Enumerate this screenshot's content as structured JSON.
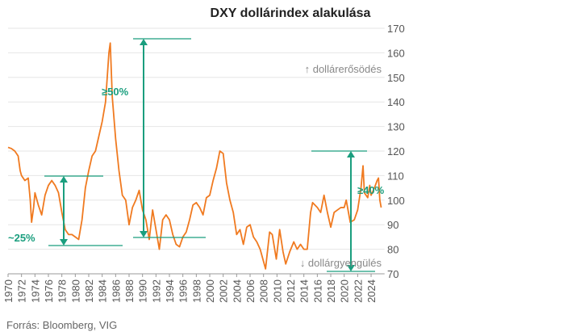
{
  "chart_data": {
    "type": "line",
    "title": "DXY dollárindex alakulása",
    "source": "Forrás: Bloomberg, VIG",
    "annotations": [
      "≥50%",
      "≥40%",
      "~25%",
      "↑ dollárerősödés",
      "↓ dollárgyengülés"
    ],
    "x": [
      1970,
      1970.5,
      1971,
      1971.5,
      1971.8,
      1972,
      1972.5,
      1973,
      1973.3,
      1973.5,
      1973.8,
      1974,
      1974.5,
      1975,
      1975.5,
      1976,
      1976.5,
      1977,
      1977.5,
      1978,
      1978.5,
      1979,
      1979.5,
      1980,
      1980.5,
      1981,
      1981.5,
      1982,
      1982.5,
      1983,
      1983.5,
      1984,
      1984.5,
      1985,
      1985.2,
      1985.5,
      1986,
      1986.5,
      1987,
      1987.5,
      1988,
      1988.5,
      1989,
      1989.5,
      1990,
      1990.5,
      1991,
      1991.5,
      1992,
      1992.5,
      1993,
      1993.5,
      1994,
      1994.5,
      1995,
      1995.5,
      1996,
      1996.5,
      1997,
      1997.5,
      1998,
      1998.5,
      1999,
      1999.5,
      2000,
      2000.5,
      2001,
      2001.5,
      2002,
      2002.5,
      2003,
      2003.5,
      2004,
      2004.5,
      2005,
      2005.5,
      2006,
      2006.5,
      2007,
      2007.5,
      2008,
      2008.3,
      2008.9,
      2009.3,
      2009.9,
      2010.4,
      2010.9,
      2011.3,
      2011.9,
      2012.5,
      2013,
      2013.5,
      2014,
      2014.5,
      2015,
      2015.3,
      2016,
      2016.5,
      2017,
      2017.5,
      2018,
      2018.5,
      2019,
      2019.5,
      2020,
      2020.3,
      2020.9,
      2021.5,
      2022,
      2022.5,
      2022.8,
      2023,
      2023.5,
      2023.8,
      2024,
      2024.5,
      2024.9,
      2025.1,
      2025.3,
      2025.5
    ],
    "series": [
      {
        "name": "DXY",
        "color": "#f07a20",
        "values": [
          121.5,
          121,
          120,
          118,
          112,
          110,
          108,
          109,
          100,
          91,
          97,
          103,
          98,
          94,
          102,
          106,
          108,
          106,
          103,
          95,
          88,
          86,
          86,
          85,
          84,
          92,
          105,
          112,
          118,
          120,
          126,
          132,
          140,
          160,
          164,
          142,
          125,
          112,
          102,
          100,
          90,
          97,
          100,
          104,
          96,
          92,
          84,
          96,
          88,
          80,
          92,
          94,
          92,
          86,
          82,
          81,
          85,
          87,
          92,
          98,
          99,
          97,
          94,
          101,
          102,
          108,
          113,
          120,
          119,
          107,
          100,
          95,
          86,
          88,
          82,
          89,
          90,
          85,
          83,
          80,
          75,
          72,
          87,
          86,
          76,
          88,
          79,
          74,
          79,
          83,
          80,
          82,
          80,
          80,
          95,
          99,
          97,
          95,
          102,
          95,
          89,
          95,
          96,
          97,
          97,
          100,
          91,
          92,
          96,
          105,
          114,
          103,
          101,
          106,
          102,
          105,
          108,
          109,
          100,
          97
        ]
      }
    ],
    "xlim": [
      1970,
      2026
    ],
    "xticks": [
      1970,
      1972,
      1974,
      1976,
      1978,
      1980,
      1982,
      1984,
      1986,
      1988,
      1990,
      1992,
      1994,
      1996,
      1998,
      2000,
      2002,
      2004,
      2006,
      2008,
      2010,
      2012,
      2014,
      2016,
      2018,
      2020,
      2022,
      2024
    ],
    "ylim": [
      70,
      170
    ],
    "yticks": [
      70,
      80,
      90,
      100,
      110,
      120,
      130,
      140,
      150,
      160,
      170
    ],
    "grid": true
  }
}
